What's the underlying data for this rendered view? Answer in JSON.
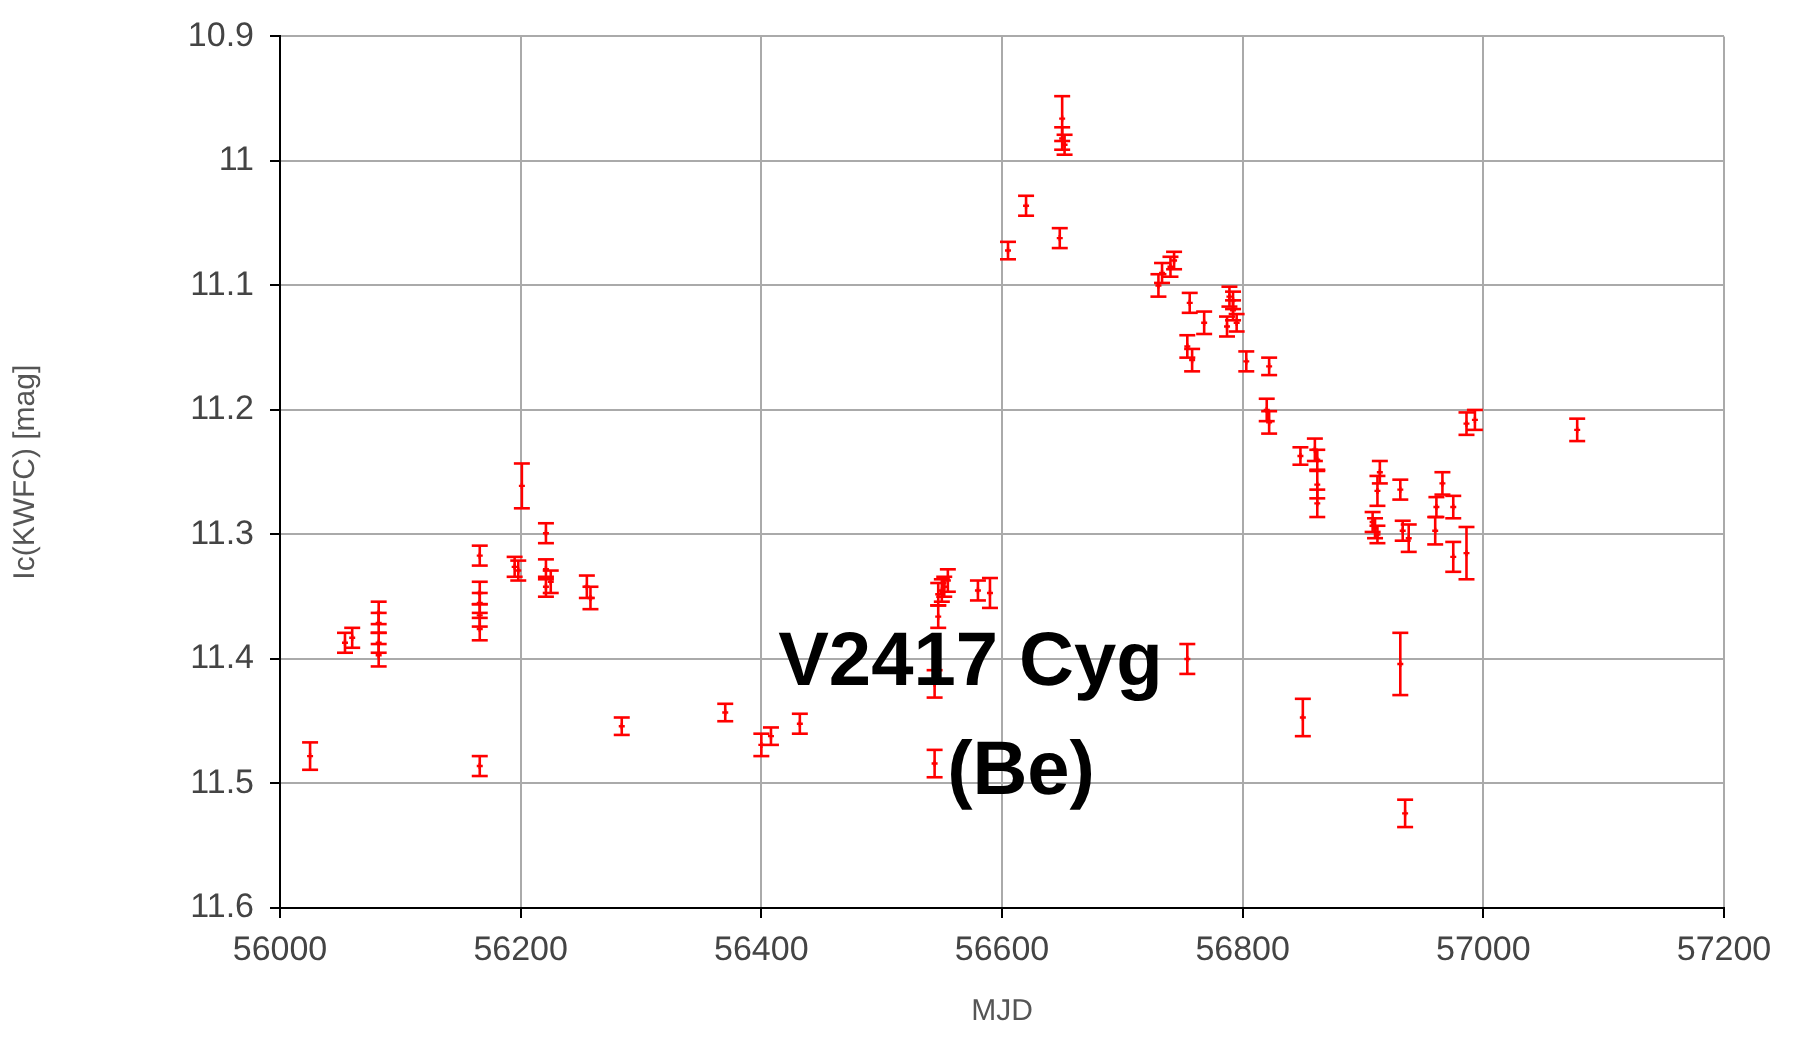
{
  "chart_data": {
    "type": "scatter",
    "xlabel": "MJD",
    "ylabel": "Ic(KWFC) [mag]",
    "annotations": [
      "V2417 Cyg",
      "(Be)"
    ],
    "xlim": [
      56000,
      57200
    ],
    "xticks": [
      56000,
      56200,
      56400,
      56600,
      56800,
      57000,
      57200
    ],
    "ylim": [
      11.6,
      10.9
    ],
    "yticks": [
      10.9,
      11,
      11.1,
      11.2,
      11.3,
      11.4,
      11.5,
      11.6
    ],
    "grid": true,
    "marker": "cross",
    "legend": false,
    "series": [
      {
        "color": "#ff0000",
        "x": [
          56025,
          56054,
          56060,
          56082,
          56082,
          56082,
          56082,
          56166,
          56166,
          56166,
          56166,
          56166,
          56166,
          56195,
          56198,
          56201,
          56221,
          56221,
          56225,
          56221,
          56255,
          56258,
          56284,
          56370,
          56400,
          56408,
          56432,
          56544,
          56544,
          56547,
          56547,
          56550,
          56552,
          56555,
          56580,
          56590,
          56605,
          56620,
          56648,
          56650,
          56650,
          56652,
          56730,
          56733,
          56740,
          56743,
          56754,
          56756,
          56754,
          56758,
          56768,
          56789,
          56792,
          56792,
          56787,
          56795,
          56803,
          56822,
          56820,
          56822,
          56848,
          56850,
          56860,
          56862,
          56862,
          56862,
          56908,
          56910,
          56912,
          56912,
          56914,
          56931,
          56933,
          56938,
          56931,
          56935,
          56960,
          56961,
          56966,
          56975,
          56975,
          56986,
          56986,
          56993,
          57078
        ],
        "values": [
          11.478,
          11.387,
          11.383,
          11.363,
          11.371,
          11.387,
          11.397,
          11.317,
          11.347,
          11.355,
          11.365,
          11.376,
          11.486,
          11.326,
          11.329,
          11.261,
          11.299,
          11.328,
          11.338,
          11.342,
          11.342,
          11.351,
          11.454,
          11.443,
          11.469,
          11.462,
          11.452,
          11.42,
          11.484,
          11.366,
          11.348,
          11.345,
          11.342,
          11.337,
          11.345,
          11.347,
          11.072,
          11.036,
          11.062,
          10.966,
          10.982,
          10.987,
          11.1,
          11.09,
          11.085,
          11.08,
          11.4,
          11.114,
          11.149,
          11.16,
          11.13,
          11.109,
          11.112,
          11.12,
          11.133,
          11.13,
          11.161,
          11.165,
          11.2,
          11.21,
          11.237,
          11.447,
          11.232,
          11.24,
          11.26,
          11.275,
          11.29,
          11.295,
          11.3,
          11.265,
          11.25,
          11.264,
          11.297,
          11.303,
          11.404,
          11.524,
          11.297,
          11.278,
          11.259,
          11.278,
          11.318,
          11.315,
          11.211,
          11.208,
          11.216
        ],
        "errors": [
          0.011,
          0.008,
          0.008,
          0.009,
          0.008,
          0.008,
          0.009,
          0.008,
          0.009,
          0.008,
          0.009,
          0.009,
          0.008,
          0.008,
          0.008,
          0.018,
          0.008,
          0.008,
          0.009,
          0.008,
          0.009,
          0.009,
          0.007,
          0.007,
          0.009,
          0.007,
          0.008,
          0.011,
          0.011,
          0.009,
          0.009,
          0.009,
          0.008,
          0.009,
          0.008,
          0.012,
          0.007,
          0.008,
          0.008,
          0.018,
          0.009,
          0.008,
          0.009,
          0.008,
          0.008,
          0.007,
          0.012,
          0.008,
          0.009,
          0.009,
          0.009,
          0.008,
          0.007,
          0.008,
          0.008,
          0.007,
          0.008,
          0.007,
          0.009,
          0.009,
          0.007,
          0.015,
          0.009,
          0.008,
          0.011,
          0.011,
          0.008,
          0.008,
          0.007,
          0.012,
          0.009,
          0.008,
          0.008,
          0.011,
          0.025,
          0.011,
          0.011,
          0.008,
          0.009,
          0.009,
          0.012,
          0.021,
          0.009,
          0.008,
          0.009
        ]
      }
    ]
  }
}
